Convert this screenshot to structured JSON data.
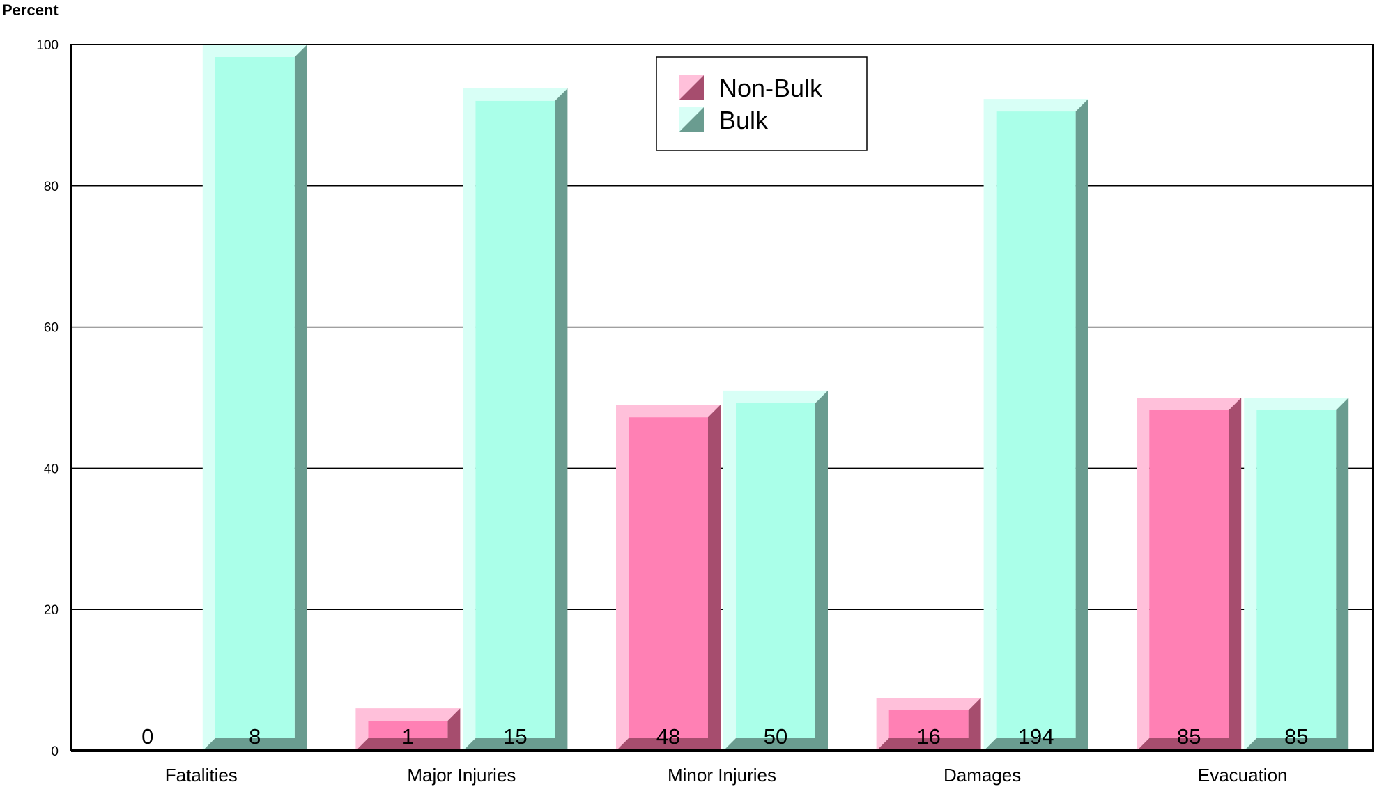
{
  "chart_data": {
    "type": "bar",
    "title": "",
    "xlabel": "",
    "ylabel": "Percent",
    "ylim": [
      0,
      100
    ],
    "yticks": [
      0,
      20,
      40,
      60,
      80,
      100
    ],
    "grid": true,
    "legend_position": "top-center",
    "categories": [
      "Fatalities",
      "Major Injuries",
      "Minor Injuries",
      "Damages",
      "Evacuation"
    ],
    "series": [
      {
        "name": "Non-Bulk",
        "values": [
          0,
          6,
          49,
          7.5,
          50
        ],
        "labels": [
          "0",
          "1",
          "48",
          "16",
          "85"
        ],
        "colors": {
          "front": "#ff80b4",
          "light": "#ffc0da",
          "dark": "#a64d6e"
        }
      },
      {
        "name": "Bulk",
        "values": [
          100,
          93.8,
          51,
          92.3,
          50
        ],
        "labels": [
          "8",
          "15",
          "50",
          "194",
          "85"
        ],
        "colors": {
          "front": "#aaffe9",
          "light": "#d8fff6",
          "dark": "#6a9c90"
        }
      }
    ]
  }
}
